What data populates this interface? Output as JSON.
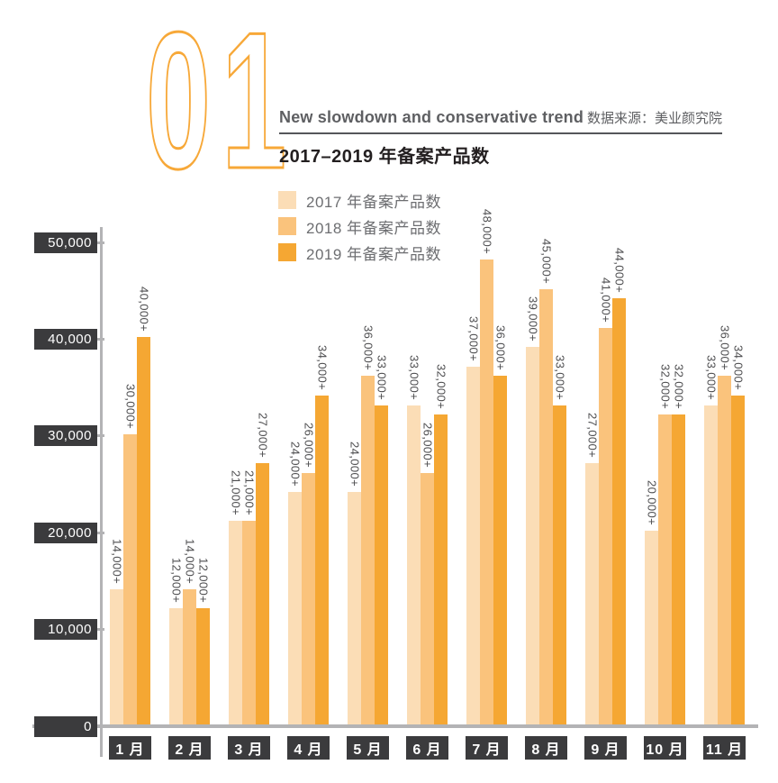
{
  "header": {
    "section_number": "01",
    "subtitle_en": "New slowdown and conservative trend",
    "source": "数据来源：美业颜究院",
    "title": "2017–2019 年备案产品数"
  },
  "legend": [
    {
      "label": "2017 年备案产品数",
      "color": "#FBDDB6"
    },
    {
      "label": "2018 年备案产品数",
      "color": "#FAC37C"
    },
    {
      "label": "2019 年备案产品数",
      "color": "#F5A733"
    }
  ],
  "chart_data": {
    "type": "bar",
    "title": "2017–2019 年备案产品数",
    "categories": [
      "1 月",
      "2 月",
      "3 月",
      "4 月",
      "5 月",
      "6 月",
      "7 月",
      "8 月",
      "9 月",
      "10 月",
      "11 月"
    ],
    "series": [
      {
        "name": "2017 年备案产品数",
        "color": "#FBDDB6",
        "values": [
          14000,
          12000,
          21000,
          24000,
          24000,
          33000,
          37000,
          39000,
          27000,
          20000,
          33000
        ]
      },
      {
        "name": "2018 年备案产品数",
        "color": "#FAC37C",
        "values": [
          30000,
          14000,
          21000,
          26000,
          36000,
          26000,
          48000,
          45000,
          41000,
          32000,
          36000
        ]
      },
      {
        "name": "2019 年备案产品数",
        "color": "#F5A733",
        "values": [
          40000,
          12000,
          27000,
          34000,
          33000,
          32000,
          36000,
          33000,
          44000,
          32000,
          34000
        ]
      }
    ],
    "value_suffix": "+",
    "bar_label_rotation_deg": 90,
    "y_ticks": [
      {
        "value": 0,
        "label": "0"
      },
      {
        "value": 10000,
        "label": "10,000"
      },
      {
        "value": 20000,
        "label": "20,000"
      },
      {
        "value": 30000,
        "label": "30,000"
      },
      {
        "value": 40000,
        "label": "40,000"
      },
      {
        "value": 50000,
        "label": "50,000"
      }
    ],
    "ylim": [
      0,
      50000
    ],
    "grid": false,
    "legend_position": "top"
  },
  "colors": {
    "accent_orange": "#F7A838",
    "axis_gray": "#B3B3B5",
    "box_dark": "#3B3B3D",
    "text_gray": "#6D6E71",
    "title_black": "#231F20",
    "bar_label_gray": "#4D4D4F"
  }
}
